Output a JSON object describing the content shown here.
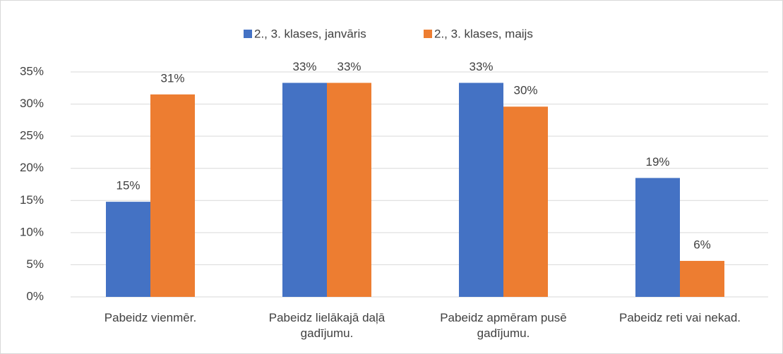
{
  "chart_data": {
    "type": "bar",
    "categories": [
      "Pabeidz vienmēr.",
      "Pabeidz lielākajā daļā gadījumu.",
      "Pabeidz apmēram pusē gadījumu.",
      "Pabeidz reti vai nekad."
    ],
    "series": [
      {
        "name": "2., 3. klases, janvāris",
        "color": "#4472c4",
        "values": [
          14.8,
          33.3,
          33.3,
          18.5
        ],
        "value_labels": [
          "15%",
          "33%",
          "33%",
          "19%"
        ]
      },
      {
        "name": "2., 3. klases, maijs",
        "color": "#ed7d31",
        "values": [
          31.5,
          33.3,
          29.6,
          5.6
        ],
        "value_labels": [
          "31%",
          "33%",
          "30%",
          "6%"
        ]
      }
    ],
    "ylim": [
      0,
      35
    ],
    "yticks": [
      {
        "value": 0,
        "label": "0%"
      },
      {
        "value": 5,
        "label": "5%"
      },
      {
        "value": 10,
        "label": "10%"
      },
      {
        "value": 15,
        "label": "15%"
      },
      {
        "value": 20,
        "label": "20%"
      },
      {
        "value": 25,
        "label": "25%"
      },
      {
        "value": 30,
        "label": "30%"
      },
      {
        "value": 35,
        "label": "35%"
      }
    ],
    "grid": true,
    "legend": "top"
  }
}
